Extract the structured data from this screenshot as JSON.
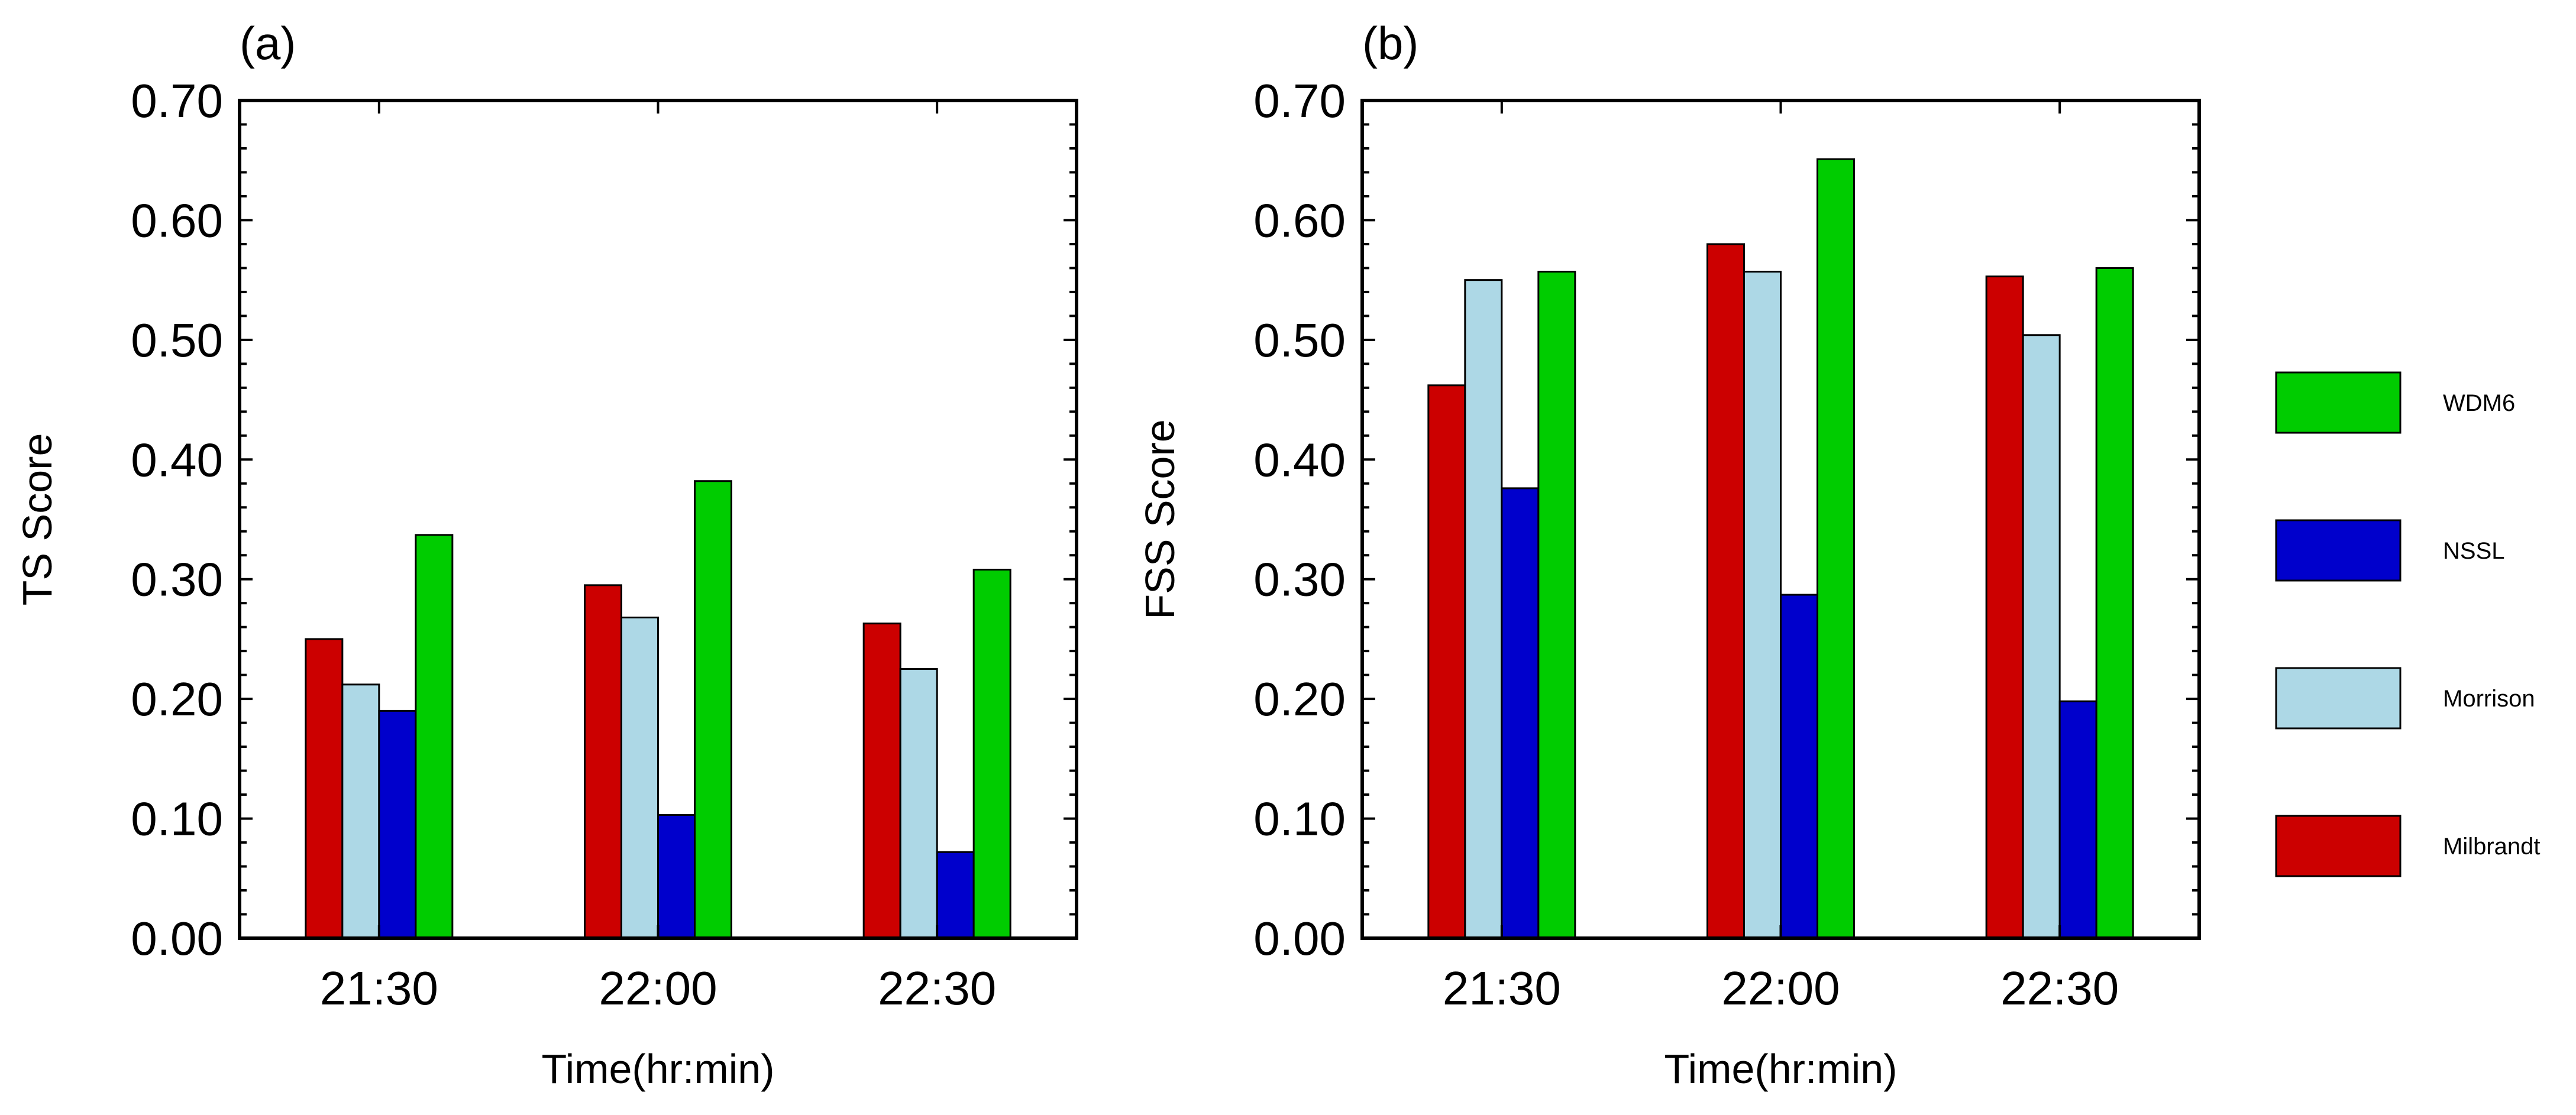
{
  "chart_data": [
    {
      "type": "bar",
      "panel_label": "(a)",
      "title": "",
      "xlabel": "Time(hr:min)",
      "ylabel": "TS Score",
      "categories": [
        "21:30",
        "22:00",
        "22:30"
      ],
      "ylim": [
        0.0,
        0.7
      ],
      "yticks": [
        "0.00",
        "0.10",
        "0.20",
        "0.30",
        "0.40",
        "0.50",
        "0.60",
        "0.70"
      ],
      "grid": false,
      "series": [
        {
          "name": "Milbrandt",
          "values": [
            0.25,
            0.295,
            0.263
          ]
        },
        {
          "name": "Morrison",
          "values": [
            0.212,
            0.268,
            0.225
          ]
        },
        {
          "name": "NSSL",
          "values": [
            0.19,
            0.103,
            0.072
          ]
        },
        {
          "name": "WDM6",
          "values": [
            0.337,
            0.382,
            0.308
          ]
        }
      ]
    },
    {
      "type": "bar",
      "panel_label": "(b)",
      "title": "",
      "xlabel": "Time(hr:min)",
      "ylabel": "FSS Score",
      "categories": [
        "21:30",
        "22:00",
        "22:30"
      ],
      "ylim": [
        0.0,
        0.7
      ],
      "yticks": [
        "0.00",
        "0.10",
        "0.20",
        "0.30",
        "0.40",
        "0.50",
        "0.60",
        "0.70"
      ],
      "grid": false,
      "series": [
        {
          "name": "Milbrandt",
          "values": [
            0.462,
            0.58,
            0.553
          ]
        },
        {
          "name": "Morrison",
          "values": [
            0.55,
            0.557,
            0.504
          ]
        },
        {
          "name": "NSSL",
          "values": [
            0.376,
            0.287,
            0.198
          ]
        },
        {
          "name": "WDM6",
          "values": [
            0.557,
            0.651,
            0.56
          ]
        }
      ]
    }
  ],
  "legend": {
    "placement": "right",
    "entries": [
      "WDM6",
      "NSSL",
      "Morrison",
      "Milbrandt"
    ]
  },
  "colors": {
    "Milbrandt": "#cc0000",
    "Morrison": "#add8e6",
    "NSSL": "#0000cc",
    "WDM6": "#00cc00"
  }
}
